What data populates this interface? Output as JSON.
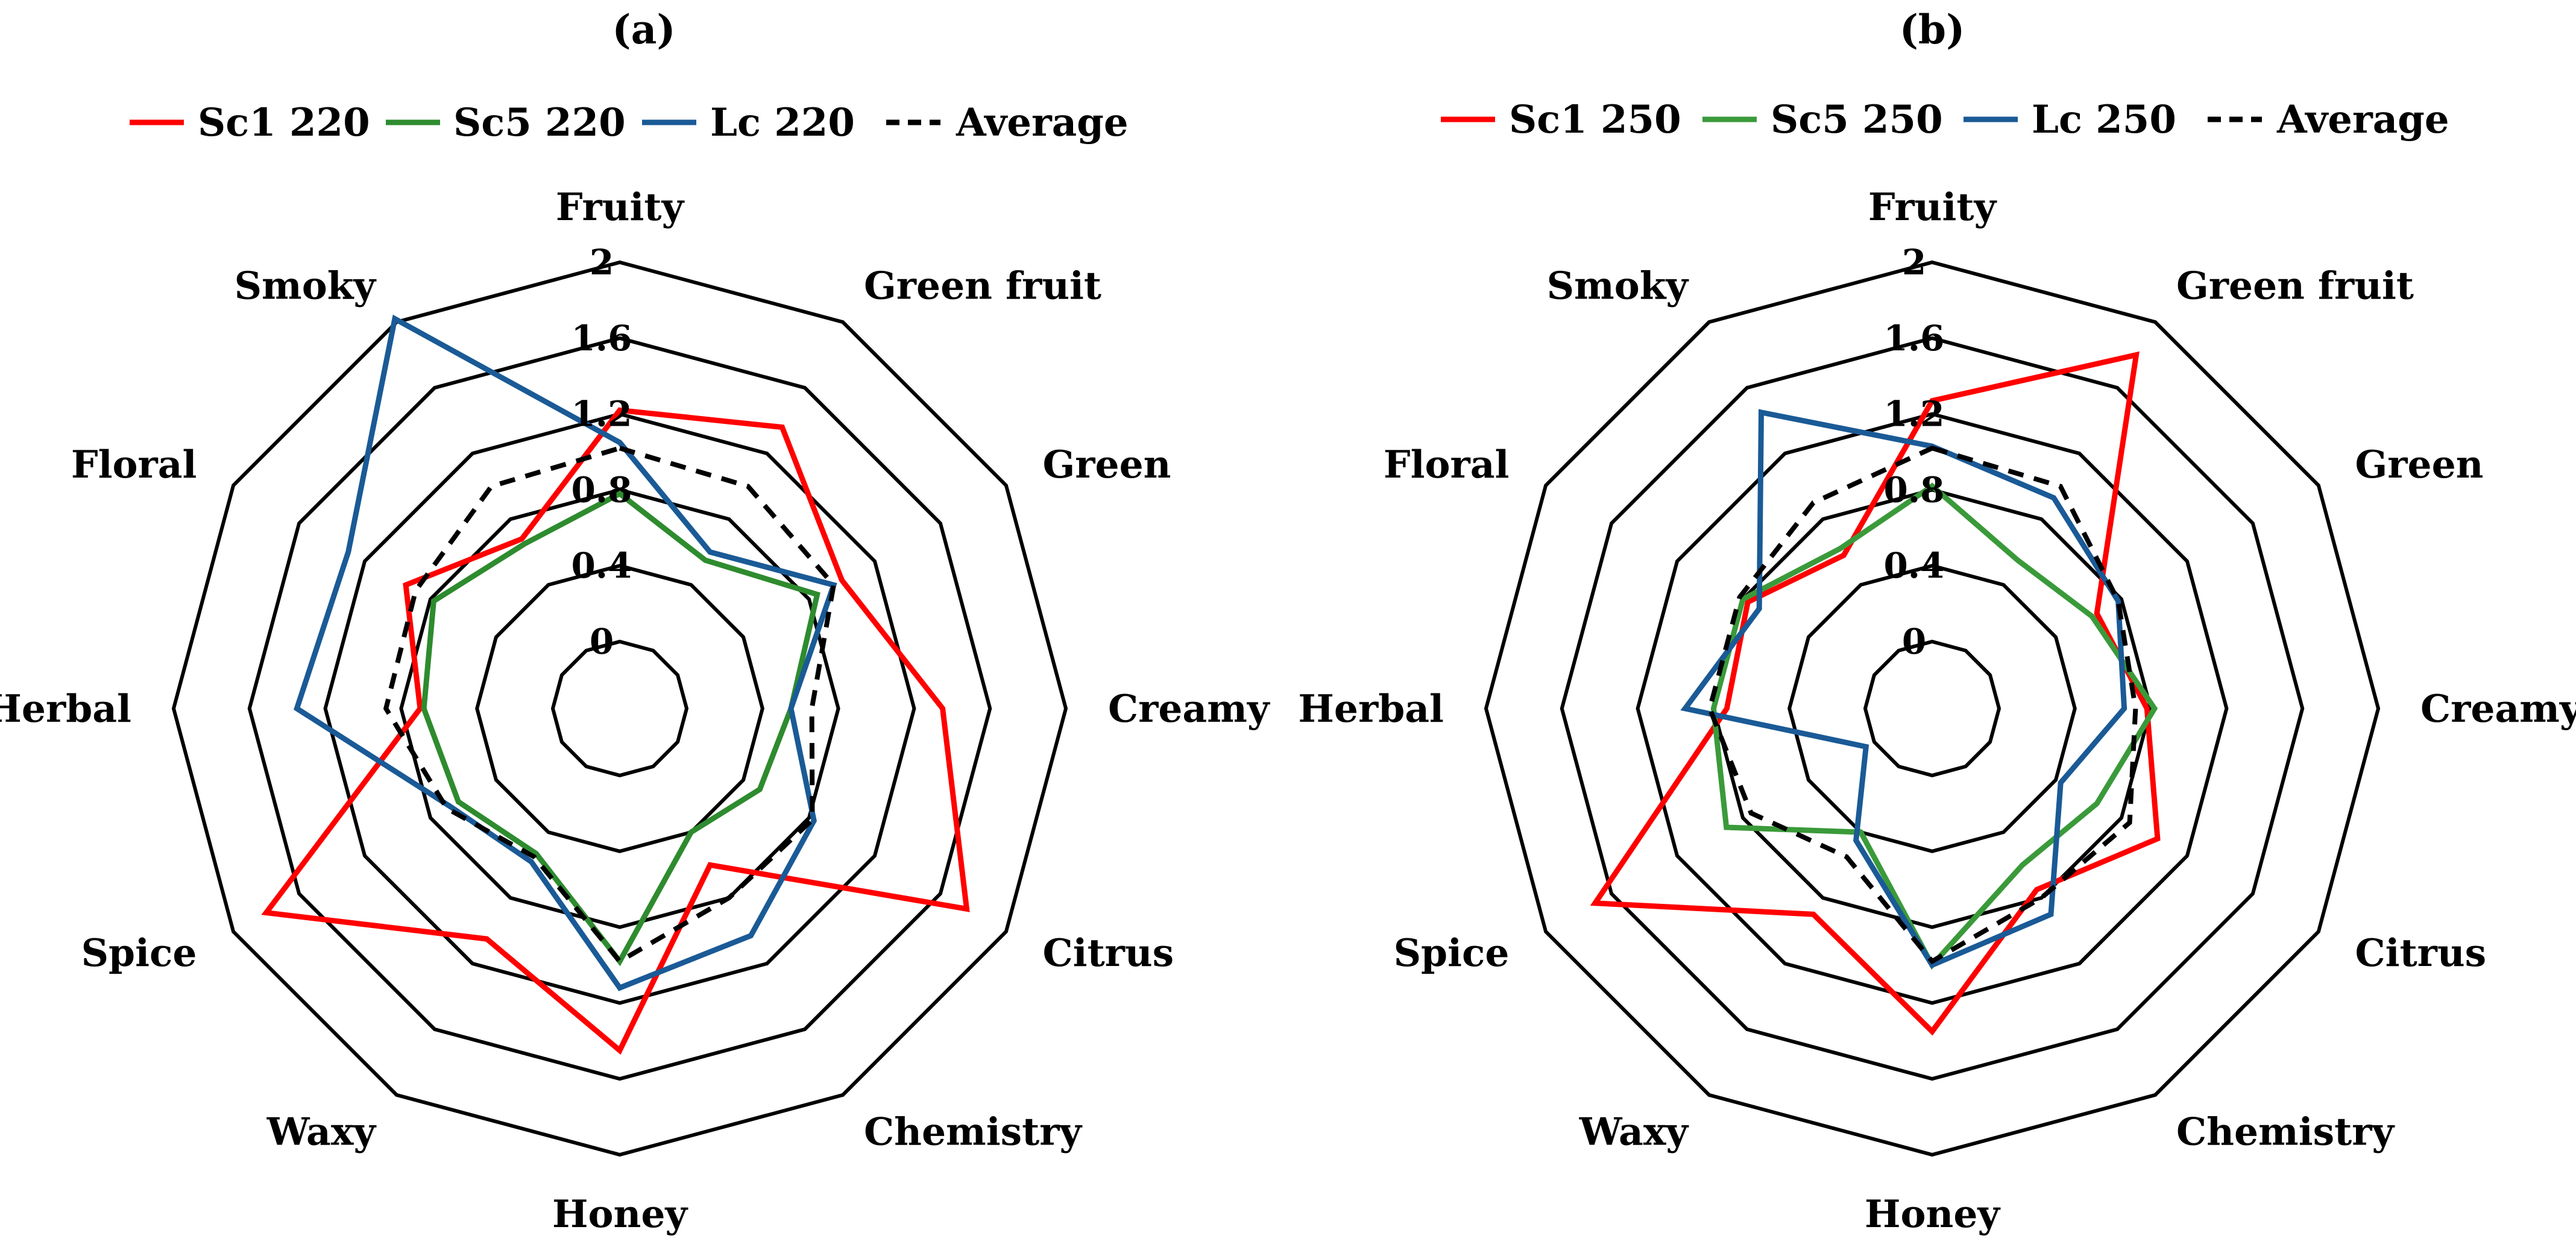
{
  "chart_data": [
    {
      "type": "radar",
      "title": "(a)",
      "axes": [
        "Fruity",
        "Green fruit",
        "Green",
        "Creamy",
        "Citrus",
        "Chemistry",
        "Honey",
        "Waxy",
        "Spice",
        "Herbal",
        "Floral",
        "Smoky"
      ],
      "tick_labels": [
        "0",
        "0.4",
        "0.8",
        "1.2",
        "1.6",
        "2"
      ],
      "rlim": [
        0,
        2
      ],
      "series": [
        {
          "name": "Sc1 220",
          "color": "#ff0000",
          "dash": false,
          "values": [
            1.22,
            1.36,
            1.0,
            1.35,
            1.76,
            0.6,
            1.45,
            1.05,
            1.8,
            0.7,
            0.95,
            0.68
          ]
        },
        {
          "name": "Sc5 220",
          "color": "#2e8b2e",
          "dash": false,
          "values": [
            0.78,
            0.55,
            0.85,
            0.55,
            0.5,
            0.4,
            0.98,
            0.53,
            0.63,
            0.68,
            0.78,
            0.65
          ]
        },
        {
          "name": "Lc 220",
          "color": "#1a5a96",
          "dash": false,
          "values": [
            1.05,
            0.6,
            0.95,
            0.55,
            0.83,
            1.03,
            1.12,
            0.58,
            0.68,
            1.35,
            1.3,
            2.02
          ]
        },
        {
          "name": "Average",
          "color": "#000000",
          "dash": true,
          "values": [
            1.02,
            1.0,
            0.95,
            0.66,
            0.82,
            0.8,
            0.98,
            0.55,
            0.7,
            0.88,
            0.89,
            1.0
          ]
        }
      ]
    },
    {
      "type": "radar",
      "title": "(b)",
      "axes": [
        "Fruity",
        "Green fruit",
        "Green",
        "Creamy",
        "Citrus",
        "Chemistry",
        "Honey",
        "Waxy",
        "Spice",
        "Herbal",
        "Floral",
        "Smoky"
      ],
      "tick_labels": [
        "0",
        "0.4",
        "0.8",
        "1.2",
        "1.6",
        "2"
      ],
      "rlim": [
        0,
        2
      ],
      "series": [
        {
          "name": "Sc1 250",
          "color": "#ff0000",
          "dash": false,
          "values": [
            1.27,
            1.8,
            0.65,
            0.78,
            1.02,
            0.75,
            1.35,
            0.9,
            1.7,
            0.73,
            0.77,
            0.58
          ]
        },
        {
          "name": "Sc5 250",
          "color": "#3a9a3a",
          "dash": false,
          "values": [
            0.82,
            0.55,
            0.62,
            0.82,
            0.65,
            0.6,
            1.0,
            0.4,
            0.9,
            0.8,
            0.8,
            0.62
          ]
        },
        {
          "name": "Lc 250",
          "color": "#1a5a96",
          "dash": false,
          "values": [
            1.03,
            0.93,
            0.78,
            0.66,
            0.43,
            0.9,
            1.0,
            0.45,
            0.05,
            0.95,
            0.7,
            1.45
          ]
        },
        {
          "name": "Average",
          "color": "#000000",
          "dash": true,
          "values": [
            1.02,
            1.0,
            0.78,
            0.72,
            0.85,
            0.8,
            0.98,
            0.55,
            0.75,
            0.82,
            0.82,
            0.9
          ]
        }
      ]
    }
  ]
}
